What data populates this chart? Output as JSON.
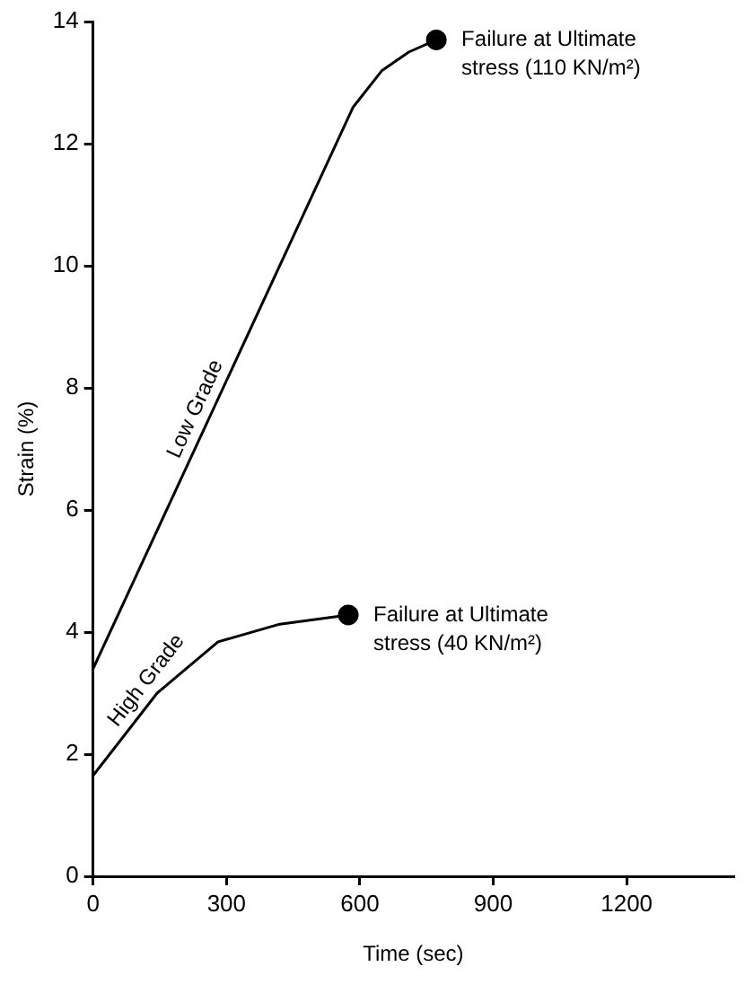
{
  "chart_data": {
    "type": "line",
    "xlabel": "Time (sec)",
    "ylabel": "Strain (%)",
    "xlim": [
      0,
      1440
    ],
    "xticks": [
      0,
      300,
      600,
      900,
      1200
    ],
    "ylim": [
      0,
      14
    ],
    "yticks": [
      0,
      2,
      4,
      6,
      8,
      10,
      12,
      14
    ],
    "grid": false,
    "legend": false,
    "marker": "none",
    "line_style": "solid",
    "series": [
      {
        "name": "Low Grade",
        "color": "#000000",
        "x": [
          0,
          585,
          650,
          710,
          772
        ],
        "values": [
          3.4,
          12.6,
          13.2,
          13.5,
          13.7
        ]
      },
      {
        "name": "High Grade",
        "color": "#000000",
        "x": [
          0,
          144,
          281,
          420,
          574
        ],
        "values": [
          1.65,
          3.0,
          3.84,
          4.13,
          4.28
        ]
      },
      {
        "type": "scatter",
        "color": "#000000",
        "marker": "circle",
        "x": [
          772,
          574
        ],
        "values": [
          13.7,
          4.28
        ]
      }
    ],
    "annotations": [
      {
        "text": "Failure at Ultimate\nstress (110 KN/m²)",
        "x": 772,
        "y": 13.7
      },
      {
        "text": "Failure at Ultimate\nstress (40 KN/m²)",
        "x": 574,
        "y": 4.28
      }
    ]
  }
}
